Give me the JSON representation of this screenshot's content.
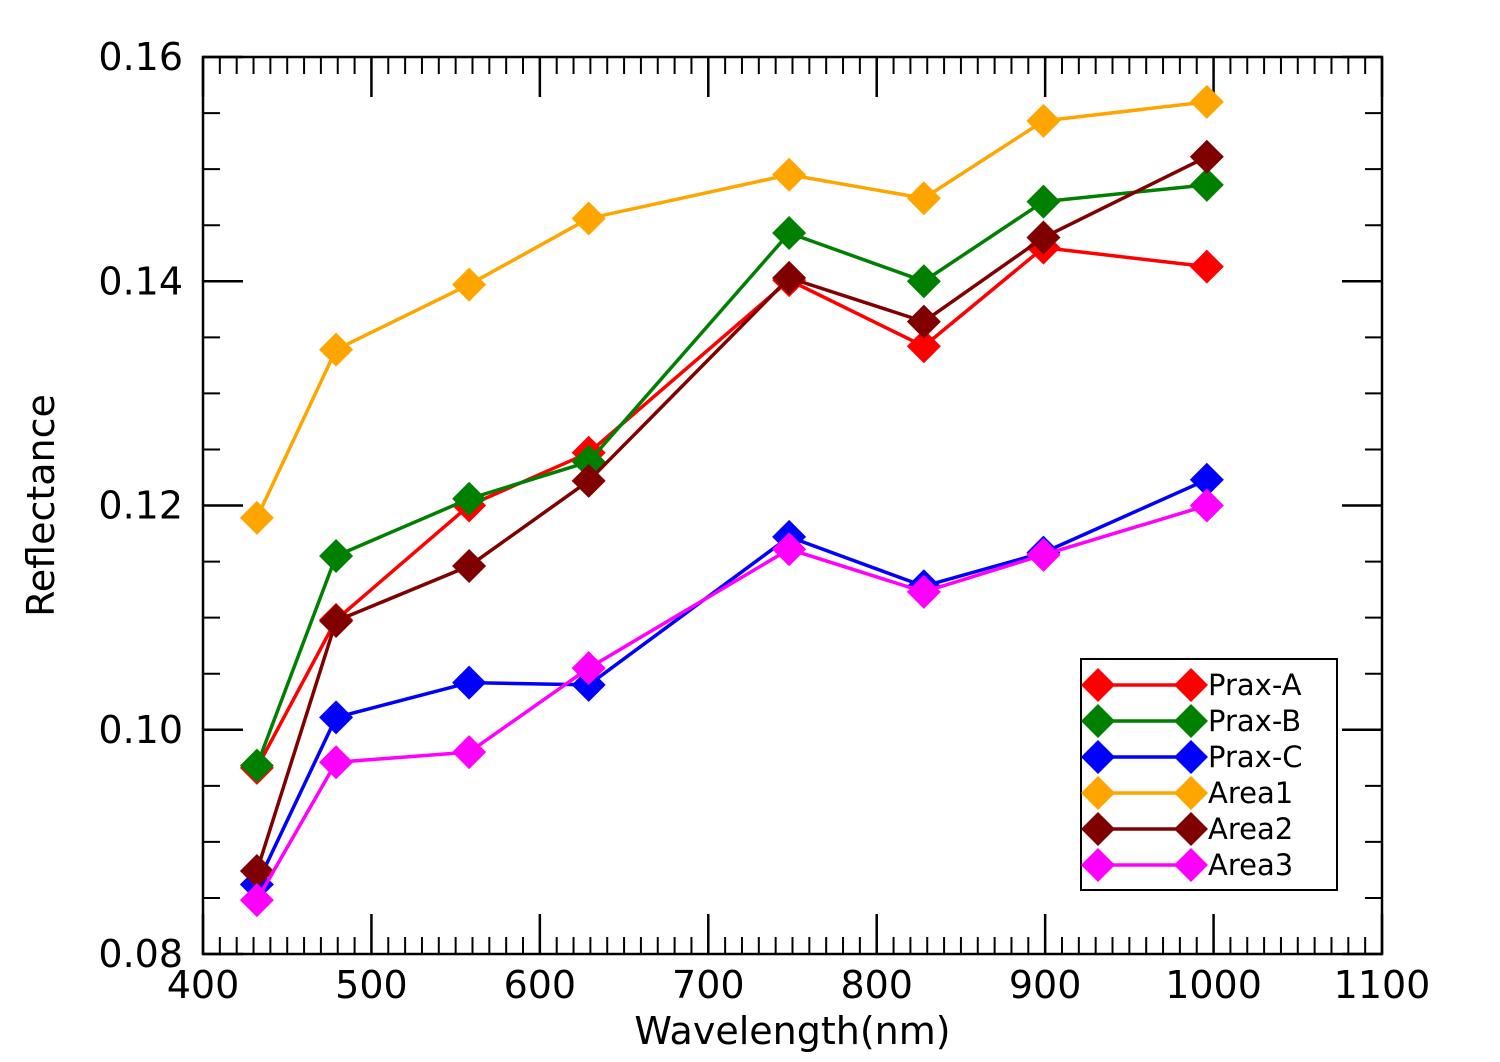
{
  "chart_data": {
    "type": "line",
    "title": "",
    "xlabel": "Wavelength(nm)",
    "ylabel": "Reflectance",
    "xlim": [
      400,
      1100
    ],
    "ylim": [
      0.08,
      0.16
    ],
    "x_ticks": [
      400,
      500,
      600,
      700,
      800,
      900,
      1000,
      1100
    ],
    "x_tick_labels": [
      "400",
      "500",
      "600",
      "700",
      "800",
      "900",
      "1000",
      "1100"
    ],
    "y_ticks": [
      0.08,
      0.1,
      0.12,
      0.14,
      0.16
    ],
    "y_tick_labels": [
      "0.08",
      "0.10",
      "0.12",
      "0.14",
      "0.16"
    ],
    "grid": false,
    "legend_position": "bottom-right",
    "marker": "diamond",
    "x": [
      432,
      479,
      558,
      629,
      748,
      828,
      899,
      996
    ],
    "series": [
      {
        "name": "Prax-A",
        "color": "#ff0000",
        "values": [
          0.0966,
          0.1098,
          0.12,
          0.1247,
          0.1401,
          0.1342,
          0.143,
          0.1413
        ]
      },
      {
        "name": "Prax-B",
        "color": "#008000",
        "values": [
          0.0968,
          0.1155,
          0.1206,
          0.1239,
          0.1443,
          0.14,
          0.1471,
          0.1486
        ]
      },
      {
        "name": "Prax-C",
        "color": "#0000ff",
        "values": [
          0.0862,
          0.1011,
          0.1042,
          0.104,
          0.1172,
          0.1128,
          0.1158,
          0.1223
        ]
      },
      {
        "name": "Area1",
        "color": "#ffa500",
        "values": [
          0.1189,
          0.1339,
          0.1397,
          0.1456,
          0.1495,
          0.1474,
          0.1543,
          0.156
        ]
      },
      {
        "name": "Area2",
        "color": "#800000",
        "values": [
          0.0874,
          0.1097,
          0.1146,
          0.1222,
          0.1403,
          0.1364,
          0.1439,
          0.1511
        ]
      },
      {
        "name": "Area3",
        "color": "#ff00ff",
        "values": [
          0.0848,
          0.0971,
          0.098,
          0.1055,
          0.1161,
          0.1123,
          0.1156,
          0.12
        ]
      }
    ]
  }
}
